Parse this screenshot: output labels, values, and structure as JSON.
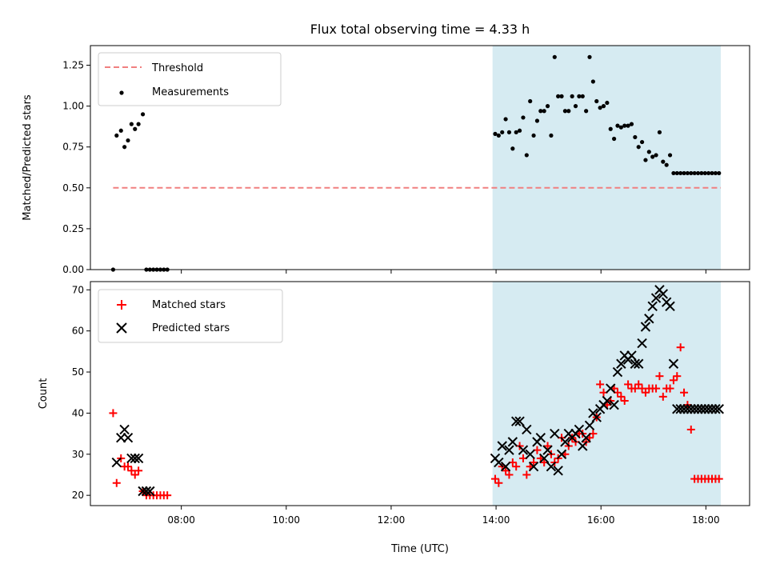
{
  "title": "Flux total observing time = 4.33 h",
  "colors": {
    "span": "#add8e6",
    "threshold": "#f08080",
    "measurement": "#000000",
    "matched": "#ff0000",
    "predicted": "#000000"
  },
  "chart_data": [
    {
      "type": "scatter",
      "ylabel": "Matched/Predicted stars",
      "xlabel": "",
      "ylim": [
        0,
        1.37
      ],
      "xlim": [
        "06:16",
        "18:50"
      ],
      "yticks": [
        "0.00",
        "0.25",
        "0.50",
        "0.75",
        "1.00",
        "1.25"
      ],
      "grid": false,
      "legend": "top-left",
      "shaded_span": [
        "13:56",
        "18:17"
      ],
      "threshold": {
        "name": "Threshold",
        "y": 0.5,
        "x_start": "06:42",
        "x_end": "18:17"
      },
      "series": [
        {
          "name": "Measurements",
          "x": [
            "06:42",
            "06:46",
            "06:51",
            "06:55",
            "06:59",
            "07:03",
            "07:07",
            "07:11",
            "07:16",
            "07:20",
            "07:24",
            "07:28",
            "07:32",
            "07:36",
            "07:40",
            "07:44",
            "13:59",
            "14:03",
            "14:07",
            "14:11",
            "14:15",
            "14:19",
            "14:23",
            "14:27",
            "14:31",
            "14:35",
            "14:39",
            "14:43",
            "14:47",
            "14:51",
            "14:55",
            "14:59",
            "15:03",
            "15:07",
            "15:11",
            "15:15",
            "15:19",
            "15:23",
            "15:27",
            "15:31",
            "15:35",
            "15:39",
            "15:43",
            "15:47",
            "15:51",
            "15:55",
            "15:59",
            "16:03",
            "16:07",
            "16:11",
            "16:15",
            "16:19",
            "16:23",
            "16:27",
            "16:31",
            "16:35",
            "16:39",
            "16:43",
            "16:47",
            "16:51",
            "16:55",
            "16:59",
            "17:03",
            "17:07",
            "17:11",
            "17:15",
            "17:19",
            "17:23",
            "17:27",
            "17:31",
            "17:35",
            "17:39",
            "17:43",
            "17:47",
            "17:51",
            "17:55",
            "17:59",
            "18:03",
            "18:07",
            "18:11",
            "18:15"
          ],
          "y": [
            0.0,
            0.82,
            0.85,
            0.75,
            0.79,
            0.89,
            0.86,
            0.89,
            0.95,
            0.0,
            0.0,
            0.0,
            0.0,
            0.0,
            0.0,
            0.0,
            0.83,
            0.82,
            0.84,
            0.92,
            0.84,
            0.74,
            0.84,
            0.85,
            0.93,
            0.7,
            1.03,
            0.82,
            0.91,
            0.97,
            0.97,
            1.0,
            0.82,
            1.3,
            1.06,
            1.06,
            0.97,
            0.97,
            1.06,
            1.0,
            1.06,
            1.06,
            0.97,
            1.3,
            1.15,
            1.03,
            0.99,
            1.0,
            1.02,
            0.86,
            0.8,
            0.88,
            0.87,
            0.88,
            0.88,
            0.89,
            0.81,
            0.75,
            0.78,
            0.67,
            0.72,
            0.69,
            0.7,
            0.84,
            0.66,
            0.64,
            0.7,
            0.59,
            0.59,
            0.59,
            0.59,
            0.59,
            0.59,
            0.59,
            0.59,
            0.59,
            0.59,
            0.59,
            0.59,
            0.59,
            0.59
          ]
        }
      ]
    },
    {
      "type": "scatter",
      "ylabel": "Count",
      "xlabel": "Time (UTC)",
      "ylim": [
        17.5,
        72
      ],
      "xlim": [
        "06:16",
        "18:50"
      ],
      "xticks": [
        "08:00",
        "10:00",
        "12:00",
        "14:00",
        "16:00",
        "18:00"
      ],
      "yticks": [
        "20",
        "30",
        "40",
        "50",
        "60",
        "70"
      ],
      "grid": false,
      "legend": "top-left",
      "shaded_span": [
        "13:56",
        "18:17"
      ],
      "series": [
        {
          "name": "Matched stars",
          "x": [
            "06:42",
            "06:46",
            "06:51",
            "06:55",
            "06:59",
            "07:03",
            "07:07",
            "07:11",
            "07:16",
            "07:20",
            "07:24",
            "07:28",
            "07:32",
            "07:36",
            "07:40",
            "07:44",
            "13:59",
            "14:03",
            "14:07",
            "14:11",
            "14:15",
            "14:19",
            "14:23",
            "14:27",
            "14:31",
            "14:35",
            "14:39",
            "14:43",
            "14:47",
            "14:51",
            "14:55",
            "14:59",
            "15:03",
            "15:07",
            "15:11",
            "15:15",
            "15:19",
            "15:23",
            "15:27",
            "15:31",
            "15:35",
            "15:39",
            "15:43",
            "15:47",
            "15:51",
            "15:55",
            "15:59",
            "16:03",
            "16:07",
            "16:11",
            "16:15",
            "16:19",
            "16:23",
            "16:27",
            "16:31",
            "16:35",
            "16:39",
            "16:43",
            "16:47",
            "16:51",
            "16:55",
            "16:59",
            "17:03",
            "17:07",
            "17:11",
            "17:15",
            "17:19",
            "17:23",
            "17:27",
            "17:31",
            "17:35",
            "17:39",
            "17:43",
            "17:47",
            "17:51",
            "17:55",
            "17:59",
            "18:03",
            "18:07",
            "18:11",
            "18:15"
          ],
          "y": [
            40,
            23,
            29,
            27,
            27,
            26,
            25,
            26,
            21,
            20,
            20,
            20,
            20,
            20,
            20,
            20,
            24,
            23,
            27,
            26,
            25,
            28,
            27,
            32,
            29,
            25,
            27,
            28,
            31,
            29,
            28,
            32,
            30,
            28,
            29,
            34,
            30,
            32,
            34,
            33,
            35,
            35,
            33,
            34,
            35,
            39,
            47,
            45,
            42,
            43,
            46,
            45,
            44,
            43,
            47,
            46,
            46,
            47,
            46,
            45,
            46,
            46,
            46,
            49,
            44,
            46,
            46,
            48,
            49,
            56,
            45,
            42,
            36,
            24,
            24,
            24,
            24,
            24,
            24,
            24,
            24
          ],
          "marker": "+"
        },
        {
          "name": "Predicted stars",
          "x": [
            "06:46",
            "06:51",
            "06:55",
            "06:59",
            "07:03",
            "07:07",
            "07:11",
            "07:16",
            "07:20",
            "07:24",
            "13:59",
            "14:03",
            "14:07",
            "14:11",
            "14:15",
            "14:19",
            "14:23",
            "14:27",
            "14:31",
            "14:35",
            "14:39",
            "14:43",
            "14:47",
            "14:51",
            "14:55",
            "14:59",
            "15:03",
            "15:07",
            "15:11",
            "15:15",
            "15:19",
            "15:23",
            "15:27",
            "15:31",
            "15:35",
            "15:39",
            "15:43",
            "15:47",
            "15:51",
            "15:55",
            "15:59",
            "16:03",
            "16:07",
            "16:11",
            "16:15",
            "16:19",
            "16:23",
            "16:27",
            "16:31",
            "16:35",
            "16:39",
            "16:43",
            "16:47",
            "16:51",
            "16:55",
            "16:59",
            "17:03",
            "17:07",
            "17:11",
            "17:15",
            "17:19",
            "17:23",
            "17:27",
            "17:31",
            "17:35",
            "17:39",
            "17:43",
            "17:47",
            "17:51",
            "17:55",
            "17:59",
            "18:03",
            "18:07",
            "18:11",
            "18:15"
          ],
          "y": [
            28,
            34,
            36,
            34,
            29,
            29,
            29,
            21,
            21,
            21,
            29,
            28,
            32,
            27,
            31,
            33,
            38,
            38,
            31,
            36,
            30,
            27,
            33,
            34,
            29,
            31,
            27,
            35,
            26,
            30,
            33,
            35,
            34,
            35,
            36,
            32,
            34,
            37,
            40,
            39,
            41,
            42,
            43,
            46,
            42,
            50,
            52,
            54,
            53,
            54,
            52,
            52,
            57,
            61,
            63,
            66,
            68,
            70,
            69,
            67,
            66,
            52,
            41,
            41,
            41,
            41,
            41,
            41,
            41,
            41,
            41,
            41,
            41,
            41,
            41
          ],
          "marker": "x"
        }
      ]
    }
  ]
}
